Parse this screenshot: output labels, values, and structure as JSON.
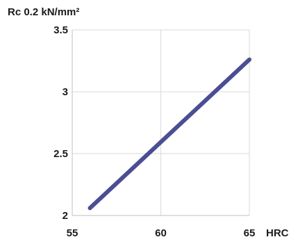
{
  "chart_data": {
    "type": "line",
    "title": "",
    "ylabel": "Rc 0.2 kN/mm²",
    "xlabel": "HRC",
    "xlim": [
      55,
      65
    ],
    "ylim": [
      2,
      3.5
    ],
    "x_ticks": [
      55,
      60,
      65
    ],
    "x_tick_labels": [
      "55",
      "60",
      "65"
    ],
    "y_ticks": [
      2,
      2.5,
      3,
      3.5
    ],
    "y_tick_labels": [
      "2",
      "2.5",
      "3",
      "3.5"
    ],
    "grid": true,
    "legend": "none",
    "series": [
      {
        "x": [
          56,
          65
        ],
        "y": [
          2.06,
          3.26
        ],
        "color": "#4b4e93"
      }
    ]
  }
}
